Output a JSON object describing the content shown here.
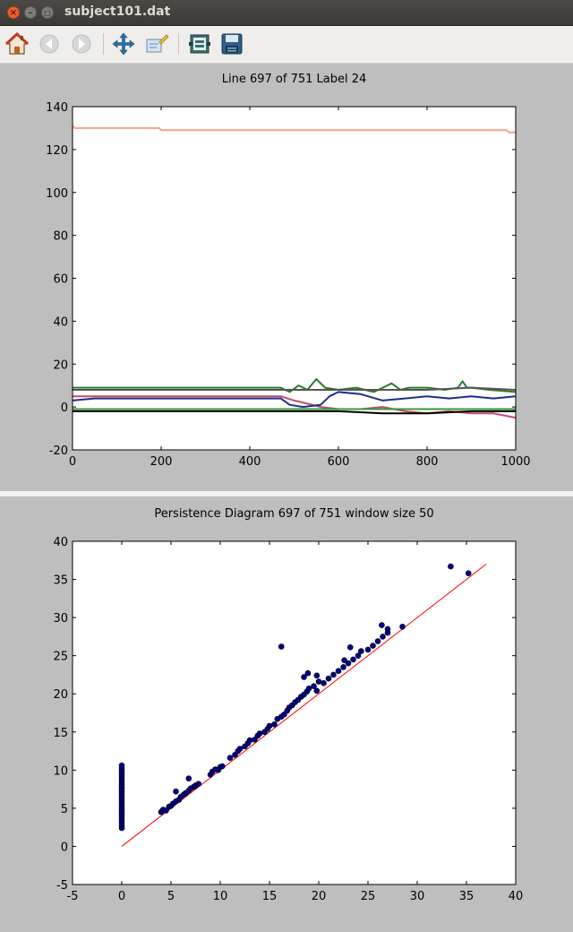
{
  "window": {
    "title": "subject101.dat"
  },
  "toolbar": {
    "icons": [
      "home-icon",
      "back-icon",
      "forward-icon",
      "pan-icon",
      "zoom-icon",
      "configure-subplots-icon",
      "save-icon"
    ]
  },
  "chart_data": [
    {
      "type": "line",
      "title": "Line 697 of 751 Label 24",
      "xlabel": "",
      "ylabel": "",
      "xlim": [
        0,
        1000
      ],
      "ylim": [
        -20,
        140
      ],
      "xticks": [
        0,
        200,
        400,
        600,
        800,
        1000
      ],
      "yticks": [
        -20,
        0,
        20,
        40,
        60,
        80,
        100,
        120,
        140
      ],
      "grid": false,
      "series": [
        {
          "color": "#f4a582",
          "x": [
            0,
            5,
            195,
            200,
            980,
            985,
            1000
          ],
          "y": [
            131,
            130,
            130,
            129,
            129,
            128,
            128
          ]
        },
        {
          "color": "#2d7a2d",
          "x": [
            0,
            100,
            200,
            300,
            400,
            470,
            490,
            510,
            530,
            550,
            570,
            600,
            640,
            680,
            700,
            720,
            740,
            760,
            800,
            840,
            870,
            880,
            890,
            900,
            940,
            1000
          ],
          "y": [
            9,
            9,
            9,
            9,
            9,
            9,
            7,
            10,
            8,
            13,
            9,
            8,
            9,
            7,
            9,
            11,
            8,
            9,
            9,
            8,
            9,
            12,
            9,
            9,
            8,
            7
          ]
        },
        {
          "color": "#555555",
          "x": [
            0,
            200,
            400,
            500,
            600,
            700,
            800,
            900,
            1000
          ],
          "y": [
            8,
            8,
            8,
            8,
            8,
            8,
            8,
            9,
            8
          ]
        },
        {
          "color": "#c24a6f",
          "x": [
            0,
            100,
            200,
            300,
            400,
            470,
            500,
            560,
            600,
            650,
            700,
            750,
            800,
            850,
            900,
            950,
            1000
          ],
          "y": [
            5,
            5,
            5,
            5,
            5,
            5,
            3,
            0,
            -1,
            -1,
            0,
            -2,
            -3,
            -2,
            -3,
            -3,
            -5
          ]
        },
        {
          "color": "#1f2e8a",
          "x": [
            0,
            50,
            100,
            200,
            300,
            400,
            470,
            490,
            520,
            560,
            580,
            600,
            650,
            700,
            750,
            800,
            850,
            900,
            950,
            1000
          ],
          "y": [
            3,
            4,
            4,
            4,
            4,
            4,
            4,
            1,
            0,
            1,
            5,
            7,
            6,
            3,
            4,
            5,
            4,
            5,
            4,
            5
          ]
        },
        {
          "color": "#3a9a3a",
          "x": [
            0,
            200,
            400,
            600,
            800,
            1000
          ],
          "y": [
            -1,
            -1,
            -1,
            -1,
            -1,
            -1
          ]
        },
        {
          "color": "#000000",
          "x": [
            0,
            200,
            400,
            500,
            600,
            700,
            800,
            900,
            1000
          ],
          "y": [
            -2,
            -2,
            -2,
            -2,
            -2,
            -3,
            -3,
            -2,
            -2
          ]
        }
      ]
    },
    {
      "type": "scatter",
      "title": "Persistence Diagram 697 of 751 window size 50",
      "xlabel": "",
      "ylabel": "",
      "xlim": [
        -5,
        40
      ],
      "ylim": [
        -5,
        40
      ],
      "xticks": [
        -5,
        0,
        5,
        10,
        15,
        20,
        25,
        30,
        35,
        40
      ],
      "yticks": [
        -5,
        0,
        5,
        10,
        15,
        20,
        25,
        30,
        35,
        40
      ],
      "grid": false,
      "diagonal": {
        "color": "#ff0000",
        "from": [
          0,
          0
        ],
        "to": [
          37,
          37
        ]
      },
      "point_color": "#00008b",
      "points": [
        [
          0,
          2.4
        ],
        [
          0,
          2.7
        ],
        [
          0,
          3.0
        ],
        [
          0,
          3.3
        ],
        [
          0,
          3.6
        ],
        [
          0,
          3.9
        ],
        [
          0,
          4.2
        ],
        [
          0,
          4.5
        ],
        [
          0,
          4.8
        ],
        [
          0,
          5.1
        ],
        [
          0,
          5.4
        ],
        [
          0,
          5.7
        ],
        [
          0,
          6.0
        ],
        [
          0,
          6.3
        ],
        [
          0,
          6.6
        ],
        [
          0,
          6.9
        ],
        [
          0,
          7.2
        ],
        [
          0,
          7.5
        ],
        [
          0,
          7.8
        ],
        [
          0,
          8.1
        ],
        [
          0,
          8.4
        ],
        [
          0,
          8.7
        ],
        [
          0,
          9.0
        ],
        [
          0,
          9.3
        ],
        [
          0,
          9.6
        ],
        [
          0,
          9.9
        ],
        [
          0,
          10.2
        ],
        [
          0,
          10.6
        ],
        [
          4,
          4.5
        ],
        [
          4.2,
          4.8
        ],
        [
          4.5,
          4.7
        ],
        [
          4.8,
          5.2
        ],
        [
          5,
          5.3
        ],
        [
          5.2,
          5.6
        ],
        [
          5.5,
          5.9
        ],
        [
          5.8,
          6.1
        ],
        [
          6,
          6.5
        ],
        [
          6.3,
          6.8
        ],
        [
          6.5,
          7.0
        ],
        [
          6.8,
          7.3
        ],
        [
          7,
          7.6
        ],
        [
          7.3,
          7.8
        ],
        [
          7.5,
          8.0
        ],
        [
          7.8,
          8.2
        ],
        [
          6.8,
          8.9
        ],
        [
          5.5,
          7.2
        ],
        [
          9,
          9.4
        ],
        [
          9.2,
          9.8
        ],
        [
          9.5,
          10.1
        ],
        [
          9.8,
          10.0
        ],
        [
          10,
          10.4
        ],
        [
          10.2,
          10.5
        ],
        [
          11,
          11.6
        ],
        [
          11.5,
          12.0
        ],
        [
          11.8,
          12.5
        ],
        [
          12,
          12.8
        ],
        [
          12.5,
          13.1
        ],
        [
          12.8,
          13.5
        ],
        [
          13,
          13.9
        ],
        [
          13.5,
          14.0
        ],
        [
          13.8,
          14.5
        ],
        [
          14,
          14.8
        ],
        [
          14.5,
          15.0
        ],
        [
          14.8,
          15.4
        ],
        [
          15,
          15.8
        ],
        [
          15.5,
          16.0
        ],
        [
          15.8,
          16.7
        ],
        [
          16.2,
          17.0
        ],
        [
          16.5,
          17.3
        ],
        [
          16.8,
          17.8
        ],
        [
          17,
          18.2
        ],
        [
          17.3,
          18.5
        ],
        [
          17.6,
          18.9
        ],
        [
          17.9,
          19.2
        ],
        [
          18.2,
          19.6
        ],
        [
          18.5,
          19.9
        ],
        [
          18.8,
          20.3
        ],
        [
          19,
          20.7
        ],
        [
          19.5,
          21.0
        ],
        [
          19.8,
          20.4
        ],
        [
          20,
          21.6
        ],
        [
          18.5,
          22.2
        ],
        [
          18.9,
          22.7
        ],
        [
          19.8,
          22.4
        ],
        [
          16.2,
          26.2
        ],
        [
          20.5,
          21.4
        ],
        [
          21,
          22.0
        ],
        [
          21.5,
          22.5
        ],
        [
          22,
          23.0
        ],
        [
          22.5,
          23.5
        ],
        [
          23,
          24.0
        ],
        [
          23.5,
          24.5
        ],
        [
          24,
          25.0
        ],
        [
          22.6,
          24.4
        ],
        [
          23.2,
          26.1
        ],
        [
          24.3,
          25.6
        ],
        [
          25,
          25.8
        ],
        [
          25.5,
          26.3
        ],
        [
          26,
          26.9
        ],
        [
          26.5,
          27.5
        ],
        [
          27,
          28.0
        ],
        [
          28.5,
          28.8
        ],
        [
          26.4,
          29.0
        ],
        [
          27.0,
          28.5
        ],
        [
          33.4,
          36.7
        ],
        [
          35.2,
          35.8
        ]
      ]
    }
  ]
}
